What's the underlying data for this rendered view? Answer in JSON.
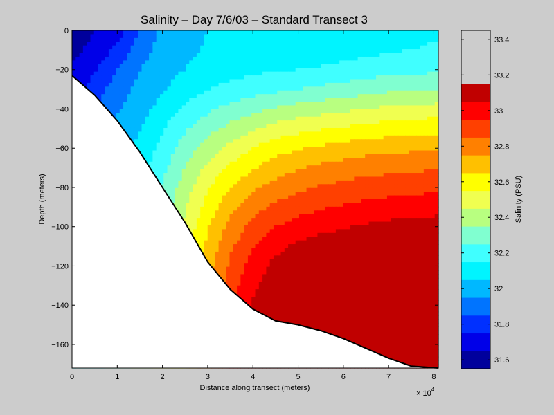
{
  "chart_data": {
    "type": "heatmap",
    "title": "Salinity – Day 7/6/03 – Standard Transect 3",
    "xlabel": "Distance along transect (meters)",
    "ylabel": "Depth (meters)",
    "x_multiplier_label": "× 10",
    "x_multiplier_exponent": "4",
    "xlim": [
      0,
      8.1
    ],
    "ylim": [
      -172,
      0
    ],
    "x_ticks": [
      0,
      1,
      2,
      3,
      4,
      5,
      6,
      7,
      8
    ],
    "x_tick_labels": [
      "0",
      "1",
      "2",
      "3",
      "4",
      "5",
      "6",
      "7",
      "8"
    ],
    "y_ticks": [
      0,
      -20,
      -40,
      -60,
      -80,
      -100,
      -120,
      -140,
      -160
    ],
    "y_tick_labels": [
      "0",
      "−20",
      "−40",
      "−60",
      "−80",
      "−100",
      "−120",
      "−140",
      "−160"
    ],
    "colorbar": {
      "label": "Salinity (PSU)",
      "range": [
        31.55,
        33.45
      ],
      "levels": [
        31.55,
        31.65,
        31.75,
        31.85,
        31.95,
        32.05,
        32.15,
        32.25,
        32.35,
        32.45,
        32.55,
        32.65,
        32.75,
        32.85,
        32.95,
        33.05,
        33.15,
        33.25,
        33.35,
        33.45
      ],
      "colors": [
        "#00009c",
        "#0000e8",
        "#0030ff",
        "#0074ff",
        "#00b8ff",
        "#00f4ff",
        "#40ffff",
        "#80ffd0",
        "#b8ff80",
        "#f0ff50",
        "#ffff00",
        "#ffc000",
        "#ff8000",
        "#ff4000",
        "#ff0000",
        "#c00000"
      ],
      "ticks": [
        31.6,
        31.8,
        32.0,
        32.2,
        32.4,
        32.6,
        32.8,
        33.0,
        33.2,
        33.4
      ],
      "tick_labels": [
        "31.6",
        "31.8",
        "32",
        "32.2",
        "32.4",
        "32.6",
        "32.8",
        "33",
        "33.2",
        "33.4"
      ]
    },
    "seabed_profile": {
      "x": [
        0,
        0.5,
        1.0,
        1.5,
        2.0,
        2.5,
        3.0,
        3.5,
        4.0,
        4.5,
        5.0,
        5.5,
        6.0,
        6.5,
        7.0,
        7.5,
        8.1
      ],
      "depth": [
        -23,
        -33,
        -46,
        -62,
        -80,
        -98,
        -118,
        -132,
        -142,
        -148,
        -150,
        -153,
        -157,
        -162,
        -167,
        -171,
        -172
      ]
    },
    "salinity_grid": {
      "x": [
        0,
        0.5,
        1.0,
        1.5,
        2.0,
        2.5,
        3.0,
        3.5,
        4.0,
        4.5,
        5.0,
        5.5,
        6.0,
        6.5,
        7.0,
        7.5,
        8.1
      ],
      "depth": [
        0,
        -10,
        -20,
        -30,
        -40,
        -50,
        -60,
        -70,
        -80,
        -90,
        -100,
        -110,
        -120,
        -130,
        -140,
        -150,
        -160,
        -172
      ],
      "values": [
        [
          31.6,
          31.65,
          31.7,
          31.85,
          31.98,
          32.02,
          32.05,
          32.05,
          32.06,
          32.06,
          32.07,
          32.07,
          32.07,
          32.08,
          32.12,
          32.13,
          32.14
        ],
        [
          31.62,
          31.68,
          31.78,
          31.9,
          31.99,
          32.03,
          32.06,
          32.07,
          32.08,
          32.09,
          32.09,
          32.1,
          32.11,
          32.12,
          32.14,
          32.15,
          32.16
        ],
        [
          31.66,
          31.74,
          31.85,
          31.95,
          32.01,
          32.05,
          32.09,
          32.11,
          32.13,
          32.14,
          32.15,
          32.16,
          32.18,
          32.2,
          32.21,
          32.22,
          32.23
        ],
        [
          31.7,
          31.8,
          31.9,
          31.98,
          32.04,
          32.1,
          32.15,
          32.18,
          32.21,
          32.23,
          32.25,
          32.27,
          32.29,
          32.31,
          32.33,
          32.34,
          32.35
        ],
        [
          31.74,
          31.85,
          31.94,
          32.01,
          32.09,
          32.17,
          32.23,
          32.28,
          32.32,
          32.36,
          32.39,
          32.41,
          32.43,
          32.45,
          32.47,
          32.48,
          32.49
        ],
        [
          31.78,
          31.88,
          31.97,
          32.04,
          32.14,
          32.24,
          32.31,
          32.38,
          32.44,
          32.49,
          32.52,
          32.54,
          32.56,
          32.58,
          32.6,
          32.61,
          32.62
        ],
        [
          31.82,
          31.92,
          32.0,
          32.08,
          32.18,
          32.3,
          32.4,
          32.48,
          32.55,
          32.61,
          32.64,
          32.67,
          32.69,
          32.71,
          32.72,
          32.73,
          32.74
        ],
        [
          31.86,
          31.95,
          32.03,
          32.11,
          32.22,
          32.35,
          32.47,
          32.57,
          32.64,
          32.7,
          32.74,
          32.77,
          32.79,
          32.81,
          32.82,
          32.83,
          32.84
        ],
        [
          31.9,
          31.98,
          32.06,
          32.14,
          32.26,
          32.4,
          32.54,
          32.65,
          32.73,
          32.79,
          32.83,
          32.86,
          32.88,
          32.9,
          32.91,
          32.92,
          32.93
        ],
        [
          31.93,
          32.01,
          32.09,
          32.17,
          32.29,
          32.44,
          32.59,
          32.72,
          32.81,
          32.87,
          32.91,
          32.94,
          32.96,
          32.98,
          32.99,
          33.0,
          33.01
        ],
        [
          31.96,
          32.04,
          32.12,
          32.2,
          32.32,
          32.47,
          32.64,
          32.78,
          32.88,
          32.95,
          32.99,
          33.02,
          33.04,
          33.06,
          33.08,
          33.09,
          33.1
        ],
        [
          31.99,
          32.07,
          32.15,
          32.23,
          32.35,
          32.5,
          32.68,
          32.83,
          32.94,
          33.02,
          33.07,
          33.1,
          33.12,
          33.14,
          33.16,
          33.17,
          33.18
        ],
        [
          32.02,
          32.1,
          32.18,
          32.26,
          32.38,
          32.53,
          32.71,
          32.87,
          32.99,
          33.08,
          33.13,
          33.17,
          33.2,
          33.22,
          33.24,
          33.25,
          33.26
        ],
        [
          32.05,
          32.13,
          32.21,
          32.29,
          32.41,
          32.56,
          32.74,
          32.9,
          33.03,
          33.12,
          33.19,
          33.23,
          33.27,
          33.3,
          33.32,
          33.33,
          33.34
        ],
        [
          32.08,
          32.16,
          32.24,
          32.32,
          32.44,
          32.59,
          32.77,
          32.93,
          33.06,
          33.15,
          33.22,
          33.28,
          33.32,
          33.35,
          33.37,
          33.38,
          33.39
        ],
        [
          32.1,
          32.18,
          32.26,
          32.34,
          32.46,
          32.61,
          32.79,
          32.95,
          33.08,
          33.17,
          33.25,
          33.3,
          33.35,
          33.38,
          33.4,
          33.41,
          33.42
        ],
        [
          32.12,
          32.2,
          32.28,
          32.36,
          32.48,
          32.63,
          32.81,
          32.97,
          33.1,
          33.19,
          33.27,
          33.32,
          33.37,
          33.4,
          33.42,
          33.43,
          33.44
        ],
        [
          32.14,
          32.22,
          32.3,
          32.38,
          32.5,
          32.65,
          32.83,
          32.99,
          33.12,
          33.21,
          33.29,
          33.34,
          33.39,
          33.42,
          33.44,
          33.45,
          33.45
        ]
      ]
    }
  }
}
